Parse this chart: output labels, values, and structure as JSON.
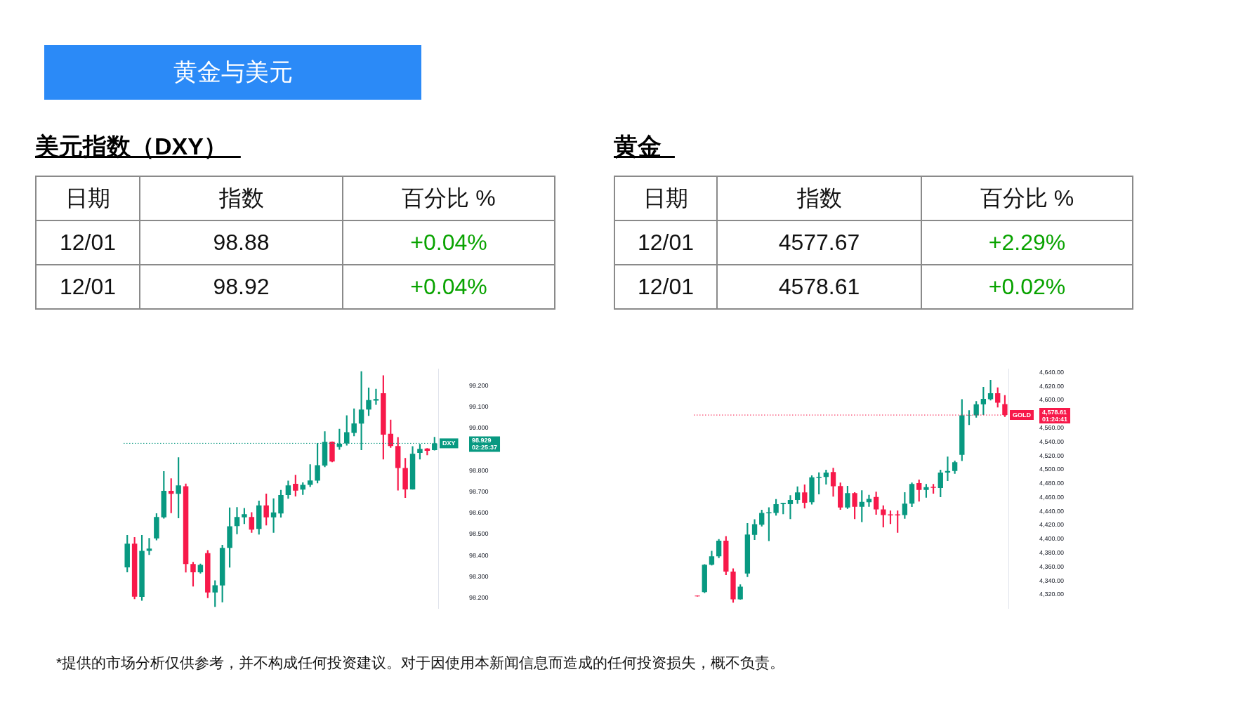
{
  "chart_data": [
    {
      "type": "other",
      "title": "黄金与美元",
      "annotations": [
        "*提供的市场分析仅供参考，并不构成任何投资建议。对于因使用本新闻信息而造成的任何投资损失，概不负责。"
      ]
    },
    {
      "type": "other",
      "title": "美元指数（DXY）",
      "annotations": [
        "日期",
        "指数",
        "百分比 %",
        "12/01",
        "98.88",
        "+0.04%",
        "12/01",
        "98.92",
        "+0.04%"
      ]
    },
    {
      "type": "candlestick",
      "categories": [
        null,
        null,
        null,
        null,
        null,
        null,
        null,
        null,
        null,
        null,
        null,
        null,
        null,
        null,
        null,
        null,
        null,
        null,
        null,
        null,
        null,
        null,
        null,
        null,
        null,
        null,
        null,
        null,
        null,
        null,
        null,
        null,
        null,
        null,
        null,
        null,
        null,
        null,
        null,
        null,
        null,
        null,
        null
      ],
      "ohlc": [
        [
          98.344,
          98.495,
          98.322,
          98.456
        ],
        [
          98.456,
          98.485,
          98.195,
          98.206
        ],
        [
          98.205,
          98.495,
          98.188,
          98.422
        ],
        [
          98.422,
          98.481,
          98.404,
          98.433
        ],
        [
          98.481,
          98.598,
          98.473,
          98.582
        ],
        [
          98.58,
          98.797,
          98.575,
          98.705
        ],
        [
          98.705,
          98.763,
          98.601,
          98.691
        ],
        [
          98.691,
          98.862,
          98.577,
          98.731
        ],
        [
          98.727,
          98.738,
          98.321,
          98.36
        ],
        [
          98.36,
          98.369,
          98.255,
          98.321
        ],
        [
          98.321,
          98.36,
          98.316,
          98.356
        ],
        [
          98.411,
          98.424,
          98.2,
          98.226
        ],
        [
          98.226,
          98.282,
          98.159,
          98.26
        ],
        [
          98.259,
          98.449,
          98.18,
          98.436
        ],
        [
          98.436,
          98.625,
          98.344,
          98.538
        ],
        [
          98.539,
          98.627,
          98.502,
          98.582
        ],
        [
          98.58,
          98.623,
          98.55,
          98.595
        ],
        [
          98.582,
          98.603,
          98.508,
          98.522
        ],
        [
          98.525,
          98.658,
          98.5,
          98.636
        ],
        [
          98.636,
          98.691,
          98.543,
          98.58
        ],
        [
          98.58,
          98.668,
          98.508,
          98.603
        ],
        [
          98.598,
          98.708,
          98.58,
          98.685
        ],
        [
          98.685,
          98.752,
          98.669,
          98.731
        ],
        [
          98.738,
          98.779,
          98.68,
          98.706
        ],
        [
          98.711,
          98.744,
          98.687,
          98.733
        ],
        [
          98.733,
          98.829,
          98.724,
          98.754
        ],
        [
          98.753,
          98.929,
          98.742,
          98.826
        ],
        [
          98.824,
          98.985,
          98.818,
          98.936
        ],
        [
          98.937,
          98.937,
          98.841,
          98.843
        ],
        [
          98.912,
          98.996,
          98.9,
          98.927
        ],
        [
          98.929,
          99.06,
          98.92,
          98.982
        ],
        [
          98.978,
          99.092,
          98.964,
          99.023
        ],
        [
          99.022,
          99.268,
          98.898,
          99.088
        ],
        [
          99.088,
          99.191,
          99.06,
          99.133
        ],
        [
          99.131,
          99.185,
          99.112,
          99.138
        ],
        [
          99.165,
          99.249,
          98.854,
          98.97
        ],
        [
          98.974,
          99.039,
          98.909,
          98.916
        ],
        [
          98.916,
          98.957,
          98.708,
          98.813
        ],
        [
          98.813,
          98.859,
          98.673,
          98.712
        ],
        [
          98.712,
          98.914,
          98.712,
          98.88
        ],
        [
          98.884,
          98.925,
          98.854,
          98.903
        ],
        [
          98.905,
          98.905,
          98.874,
          98.894
        ],
        [
          98.897,
          98.958,
          98.897,
          98.929
        ]
      ],
      "ylim": [
        98.15,
        99.28
      ],
      "yticks": [
        {
          "value": 98.2,
          "label": "98.200"
        },
        {
          "value": 98.3,
          "label": "98.300"
        },
        {
          "value": 98.4,
          "label": "98.400"
        },
        {
          "value": 98.5,
          "label": "98.500"
        },
        {
          "value": 98.6,
          "label": "98.600"
        },
        {
          "value": 98.7,
          "label": "98.700"
        },
        {
          "value": 98.8,
          "label": "98.800"
        },
        {
          "value": 99.0,
          "label": "99.000"
        },
        {
          "value": 99.1,
          "label": "99.100"
        },
        {
          "value": 99.2,
          "label": "99.200"
        }
      ],
      "ref_lines": [
        {
          "axis": "y",
          "value": 98.929,
          "label": "DXY 98.929 02:25:37",
          "color": "#089981",
          "line_style": "dotted"
        }
      ],
      "tick_labels": "y"
    },
    {
      "type": "other",
      "title": "黄金",
      "annotations": [
        "日期",
        "指数",
        "百分比 %",
        "12/01",
        "4577.67",
        "+2.29%",
        "12/01",
        "4578.61",
        "+0.02%"
      ]
    },
    {
      "type": "candlestick",
      "categories": [
        null,
        null,
        null,
        null,
        null,
        null,
        null,
        null,
        null,
        null,
        null,
        null,
        null,
        null,
        null,
        null,
        null,
        null,
        null,
        null,
        null,
        null,
        null,
        null,
        null,
        null,
        null,
        null,
        null,
        null,
        null,
        null,
        null,
        null,
        null,
        null,
        null,
        null,
        null,
        null,
        null,
        null,
        null,
        null
      ],
      "ohlc": [
        [
          4318.6,
          4318.6,
          4317.5,
          4317.5
        ],
        [
          4323.6,
          4363.5,
          4322.8,
          4363.0
        ],
        [
          4363.0,
          4382.7,
          4362.4,
          4375.1
        ],
        [
          4375.1,
          4399.6,
          4372.9,
          4397.6
        ],
        [
          4397.6,
          4403.8,
          4348.4,
          4353.2
        ],
        [
          4353.2,
          4357.4,
          4308.7,
          4313.2
        ],
        [
          4313.2,
          4334.3,
          4313.2,
          4331.5
        ],
        [
          4350.4,
          4422.6,
          4345.6,
          4406.6
        ],
        [
          4406.0,
          4428.3,
          4399.0,
          4421.5
        ],
        [
          4420.7,
          4441.8,
          4418.4,
          4437.5
        ],
        [
          4437.0,
          4445.4,
          4397.6,
          4438.7
        ],
        [
          4437.5,
          4457.2,
          4434.2,
          4450.2
        ],
        [
          4450.2,
          4451.9,
          4436.1,
          4451.9
        ],
        [
          4450.2,
          4462.8,
          4429.1,
          4456.4
        ],
        [
          4456.4,
          4475.5,
          4451.0,
          4467.1
        ],
        [
          4467.1,
          4478.3,
          4444.6,
          4452.4
        ],
        [
          4453.0,
          4491.5,
          4450.2,
          4489.0
        ],
        [
          4488.1,
          4495.7,
          4464.8,
          4489.8
        ],
        [
          4489.5,
          4499.4,
          4478.9,
          4495.7
        ],
        [
          4496.6,
          4502.2,
          4461.4,
          4476.1
        ],
        [
          4476.3,
          4481.1,
          4442.6,
          4445.4
        ],
        [
          4445.4,
          4476.3,
          4443.7,
          4466.2
        ],
        [
          4466.2,
          4467.1,
          4429.1,
          4446.5
        ],
        [
          4446.5,
          4469.9,
          4424.9,
          4453.6
        ],
        [
          4453.0,
          4463.4,
          4446.8,
          4457.8
        ],
        [
          4460.6,
          4467.9,
          4435.3,
          4442.6
        ],
        [
          4442.6,
          4448.2,
          4417.3,
          4434.7
        ],
        [
          4435.6,
          4440.9,
          4422.1,
          4434.0
        ],
        [
          4435.6,
          4440.9,
          4409.4,
          4434.0
        ],
        [
          4434.7,
          4467.1,
          4429.6,
          4451.0
        ],
        [
          4451.0,
          4481.1,
          4446.5,
          4479.2
        ],
        [
          4480.6,
          4485.3,
          4454.4,
          4470.7
        ],
        [
          4470.7,
          4478.9,
          4460.0,
          4474.9
        ],
        [
          4475.4,
          4478.9,
          4465.7,
          4473.8
        ],
        [
          4473.5,
          4499.4,
          4460.6,
          4495.7
        ],
        [
          4495.7,
          4518.5,
          4483.9,
          4498.0
        ],
        [
          4498.0,
          4512.6,
          4494.3,
          4510.6
        ],
        [
          4521.3,
          4601.2,
          4512.9,
          4578.1
        ],
        [
          4578.1,
          4585.2,
          4564.6,
          4578.7
        ],
        [
          4578.1,
          4598.4,
          4575.3,
          4594.2
        ],
        [
          4594.2,
          4618.9,
          4579.0,
          4602.0
        ],
        [
          4601.5,
          4628.8,
          4600.1,
          4609.9
        ],
        [
          4609.9,
          4618.1,
          4589.9,
          4596.4
        ],
        [
          4594.4,
          4606.8,
          4576.2,
          4578.6
        ]
      ],
      "ylim": [
        4300,
        4645
      ],
      "yticks": [
        {
          "value": 4320,
          "label": "4,320.00"
        },
        {
          "value": 4340,
          "label": "4,340.00"
        },
        {
          "value": 4360,
          "label": "4,360.00"
        },
        {
          "value": 4380,
          "label": "4,380.00"
        },
        {
          "value": 4400,
          "label": "4,400.00"
        },
        {
          "value": 4420,
          "label": "4,420.00"
        },
        {
          "value": 4440,
          "label": "4,440.00"
        },
        {
          "value": 4460,
          "label": "4,460.00"
        },
        {
          "value": 4480,
          "label": "4,480.00"
        },
        {
          "value": 4500,
          "label": "4,500.00"
        },
        {
          "value": 4520,
          "label": "4,520.00"
        },
        {
          "value": 4540,
          "label": "4,540.00"
        },
        {
          "value": 4560,
          "label": "4,560.00"
        },
        {
          "value": 4600,
          "label": "4,600.00"
        },
        {
          "value": 4620,
          "label": "4,620.00"
        },
        {
          "value": 4640,
          "label": "4,640.00"
        }
      ],
      "ref_lines": [
        {
          "axis": "y",
          "value": 4578.61,
          "label": "GOLD 4,578.61 01:24:41",
          "color": "#f7194a",
          "line_style": "dotted"
        }
      ],
      "tick_labels": "y"
    }
  ]
}
